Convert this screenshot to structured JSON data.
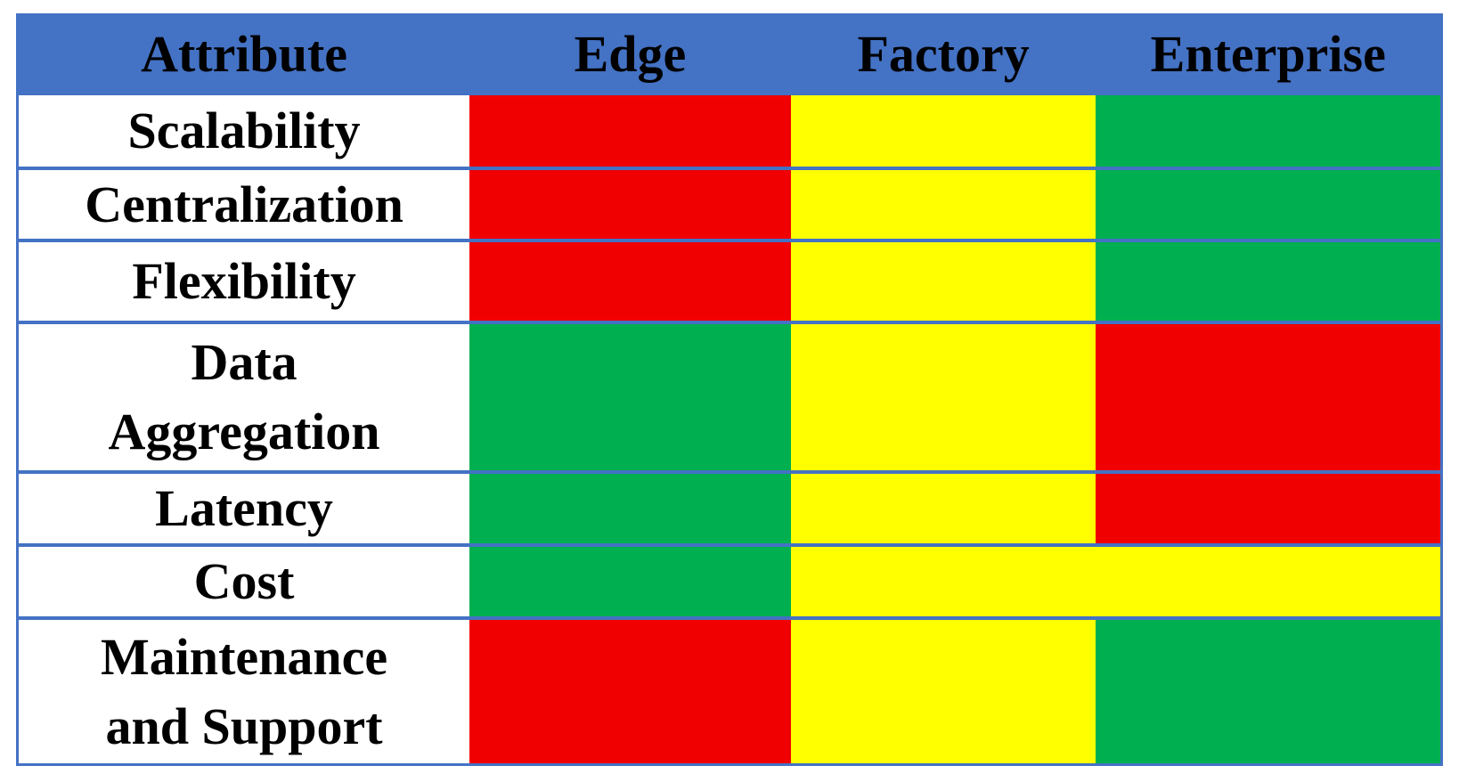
{
  "chart_data": {
    "type": "table",
    "title": "",
    "columns": [
      "Attribute",
      "Edge",
      "Factory",
      "Enterprise"
    ],
    "rows": [
      [
        "Scalability",
        "red",
        "yellow",
        "green"
      ],
      [
        "Centralization",
        "red",
        "yellow",
        "green"
      ],
      [
        "Flexibility",
        "red",
        "yellow",
        "green"
      ],
      [
        "Data Aggregation",
        "green",
        "yellow",
        "red"
      ],
      [
        "Latency",
        "green",
        "yellow",
        "red"
      ],
      [
        "Cost",
        "green",
        "yellow (merged across Factory and Enterprise)",
        "yellow (merged across Factory and Enterprise)"
      ],
      [
        "Maintenance and Support",
        "red",
        "yellow",
        "green"
      ]
    ],
    "color_legend": {
      "red": "#F00000",
      "yellow": "#FFFF00",
      "green": "#00B050"
    },
    "layout_hints": {
      "grid": "blue horizontal row borders",
      "header_bg": "#4472C4"
    }
  },
  "table": {
    "columns": [
      "Attribute",
      "Edge",
      "Factory",
      "Enterprise"
    ],
    "colors": {
      "header_bg": "#4472C4",
      "border": "#4472C4",
      "attribute_bg": "#FFFFFF",
      "text": "#000000",
      "red": "#F00000",
      "yellow": "#FFFF00",
      "green": "#00B050"
    },
    "rows": [
      {
        "attribute": "Scalability",
        "cells": [
          {
            "col": "Edge",
            "color": "red"
          },
          {
            "col": "Factory",
            "color": "yellow"
          },
          {
            "col": "Enterprise",
            "color": "green"
          }
        ]
      },
      {
        "attribute": "Centralization",
        "cells": [
          {
            "col": "Edge",
            "color": "red"
          },
          {
            "col": "Factory",
            "color": "yellow"
          },
          {
            "col": "Enterprise",
            "color": "green"
          }
        ]
      },
      {
        "attribute": "Flexibility",
        "cells": [
          {
            "col": "Edge",
            "color": "red"
          },
          {
            "col": "Factory",
            "color": "yellow"
          },
          {
            "col": "Enterprise",
            "color": "green"
          }
        ]
      },
      {
        "attribute": "Data\nAggregation",
        "cells": [
          {
            "col": "Edge",
            "color": "green"
          },
          {
            "col": "Factory",
            "color": "yellow"
          },
          {
            "col": "Enterprise",
            "color": "red"
          }
        ]
      },
      {
        "attribute": "Latency",
        "cells": [
          {
            "col": "Edge",
            "color": "green"
          },
          {
            "col": "Factory",
            "color": "yellow"
          },
          {
            "col": "Enterprise",
            "color": "red"
          }
        ]
      },
      {
        "attribute": "Cost",
        "cells": [
          {
            "col": "Edge",
            "color": "green"
          },
          {
            "col": "Factory-Enterprise",
            "color": "yellow",
            "colspan": 2
          }
        ]
      },
      {
        "attribute": "Maintenance\nand Support",
        "cells": [
          {
            "col": "Edge",
            "color": "red"
          },
          {
            "col": "Factory",
            "color": "yellow"
          },
          {
            "col": "Enterprise",
            "color": "green"
          }
        ]
      }
    ]
  }
}
